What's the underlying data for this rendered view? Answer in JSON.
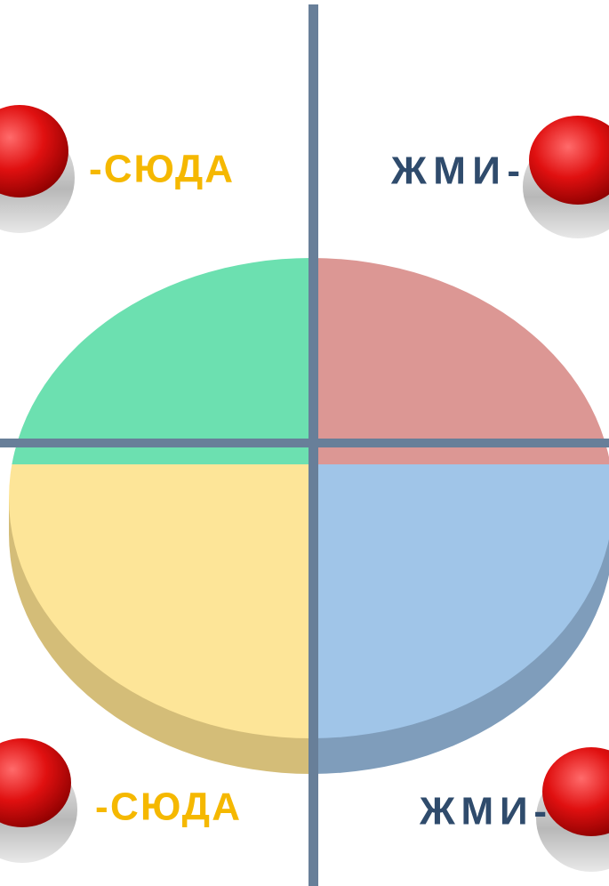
{
  "buttons": [
    {
      "label": "-СЮДА"
    },
    {
      "label": "ЖМИ-"
    },
    {
      "label": "-СЮДА"
    },
    {
      "label": "ЖМИ-"
    }
  ]
}
